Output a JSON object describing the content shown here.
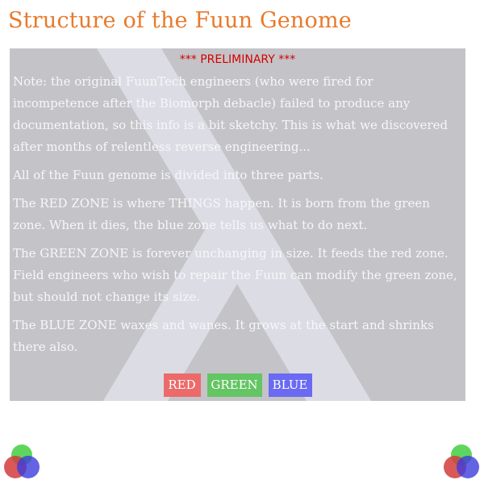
{
  "page": {
    "title": "Structure of the Fuun Genome"
  },
  "panel": {
    "preliminary": "*** PRELIMINARY ***",
    "paragraphs": [
      "Note: the original FuunTech engineers (who were fired for incompetence after the Biomorph debacle) failed to produce any documentation, so this info is a bit sketchy. This is what we discovered after months of relentless reverse engineering...",
      "All of the Fuun genome is divided into three parts.",
      "The RED ZONE is where THINGS happen. It is born from the green zone. When it dies, the blue zone tells us what to do next.",
      "The GREEN ZONE is forever unchanging in size. It feeds the red zone. Field engineers who wish to repair the Fuun can modify the green zone, but should not change its size.",
      "The BLUE ZONE waxes and wanes. It grows at the start and shrinks there also."
    ],
    "buttons": {
      "red": "RED",
      "green": "GREEN",
      "blue": "BLUE"
    }
  },
  "colors": {
    "title": "#e87a2c",
    "panel_bg": "#c4c4c8",
    "lambda": "#e4e4ee",
    "preliminary": "#d40000",
    "red_zone": "#ec6a6a",
    "green_zone": "#63c563",
    "blue_zone": "#6a6af2"
  },
  "icons": {
    "background": "lambda-icon",
    "corner_logo": "rgb-circles-logo-icon"
  }
}
